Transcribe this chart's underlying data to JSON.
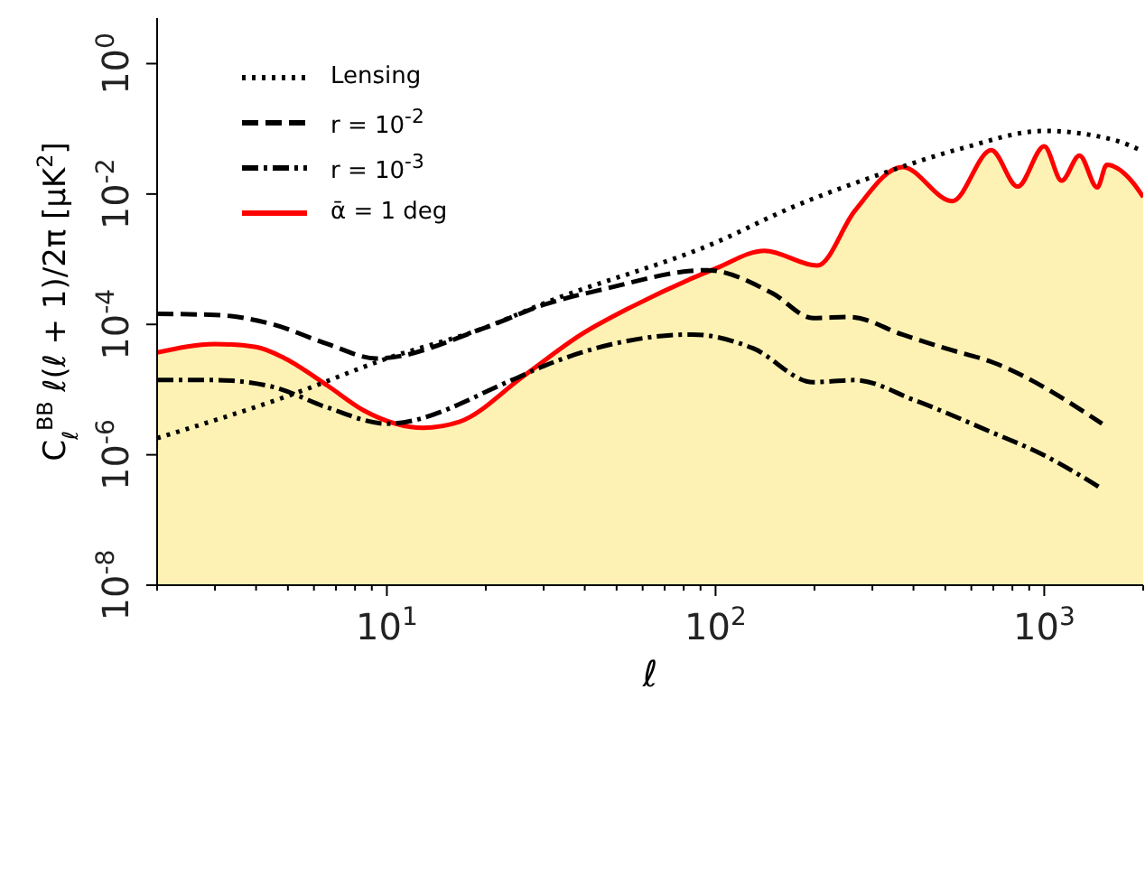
{
  "chart_data": {
    "type": "line",
    "xlabel": "ℓ",
    "ylabel": "C$_{ℓ}$$^{BB}$ ℓ(ℓ + 1)/2π [μK$^{2}$]",
    "log": "xy",
    "xlim": [
      2,
      2000
    ],
    "ylim": [
      1e-08,
      5
    ],
    "xticks": [
      {
        "value": 2,
        "label": null
      },
      {
        "value": 3,
        "label": null
      },
      {
        "value": 4,
        "label": null
      },
      {
        "value": 5,
        "label": null
      },
      {
        "value": 6,
        "label": null
      },
      {
        "value": 7,
        "label": null
      },
      {
        "value": 8,
        "label": null
      },
      {
        "value": 9,
        "label": null
      },
      {
        "value": 10,
        "label": "10$^{1}$"
      },
      {
        "value": 20,
        "label": null
      },
      {
        "value": 30,
        "label": null
      },
      {
        "value": 40,
        "label": null
      },
      {
        "value": 50,
        "label": null
      },
      {
        "value": 60,
        "label": null
      },
      {
        "value": 70,
        "label": null
      },
      {
        "value": 80,
        "label": null
      },
      {
        "value": 90,
        "label": null
      },
      {
        "value": 100,
        "label": "10$^{2}$"
      },
      {
        "value": 200,
        "label": null
      },
      {
        "value": 300,
        "label": null
      },
      {
        "value": 400,
        "label": null
      },
      {
        "value": 500,
        "label": null
      },
      {
        "value": 600,
        "label": null
      },
      {
        "value": 700,
        "label": null
      },
      {
        "value": 800,
        "label": null
      },
      {
        "value": 900,
        "label": null
      },
      {
        "value": 1000,
        "label": "10$^{3}$"
      },
      {
        "value": 2000,
        "label": null
      }
    ],
    "yticks": [
      {
        "value": 1e-08,
        "label": "10$^{-8}$"
      },
      {
        "value": 1e-06,
        "label": "10$^{-6}$"
      },
      {
        "value": 0.0001,
        "label": "10$^{-4}$"
      },
      {
        "value": 0.01,
        "label": "10$^{-2}$"
      },
      {
        "value": 1,
        "label": "10$^{0}$"
      }
    ],
    "grid": false,
    "legend": "top left",
    "series": [
      {
        "name": "Lensing",
        "color": "#000000",
        "line_style": "dotted",
        "x": [
          2,
          5,
          10,
          20,
          30,
          100,
          174,
          316,
          560,
          1000,
          1620,
          2000
        ],
        "values": [
          1.8e-06,
          8e-06,
          3e-05,
          9e-05,
          0.00021,
          0.0018,
          0.0065,
          0.02,
          0.05,
          0.093,
          0.068,
          0.045
        ]
      },
      {
        "name": "r = 10$^{-2}$",
        "color": "#000000",
        "line_style": "dashed",
        "x": [
          2,
          3,
          4.5,
          6.6,
          9.3,
          20,
          30,
          46,
          94,
          149,
          198,
          256,
          370,
          500,
          700,
          1500
        ],
        "values": [
          0.000145,
          0.00014,
          0.0001,
          5e-05,
          3e-05,
          9e-05,
          0.0002,
          0.00035,
          0.00068,
          0.0003,
          0.000125,
          0.00013,
          7e-05,
          4.3e-05,
          2.6e-05,
          3e-06
        ]
      },
      {
        "name": "r = 10$^{-3}$",
        "color": "#000000",
        "line_style": "dashdot",
        "x": [
          2,
          3,
          4.5,
          6.6,
          10,
          24,
          30,
          85,
          130,
          198,
          265,
          405,
          680,
          1000,
          1500
        ],
        "values": [
          1.4e-05,
          1.4e-05,
          1.1e-05,
          5.3e-06,
          3e-06,
          1.4e-05,
          2.3e-05,
          7e-05,
          4.3e-05,
          1.3e-05,
          1.4e-05,
          6.8e-06,
          2.3e-06,
          9.8e-07,
          3e-07
        ]
      },
      {
        "type": "area",
        "name": "ᾱ = 1 deg",
        "color": "#ff0000",
        "colors": [
          "#fdf2b4",
          "#fdf2b4",
          "#fdf2b4",
          "#fdf2b4",
          "#fdf2b4",
          "#fdf2b4",
          "#fdf2b4",
          "#fdf2b4",
          "#fdf2b4",
          "#fdf2b4",
          "#fdf2b4",
          "#fdf2b4",
          "#fdf2b4",
          "#fdf2b4",
          "#fdf2b4",
          "#fdf2b4",
          "#fdf2b4",
          "#fdf2b4",
          "#fdf2b4",
          "#fdf2b4",
          "#fdf2b4",
          "#fdf2b4",
          "#fdf2b4",
          "#fdf2b4",
          "#fdf2b4",
          "#fdf2b4"
        ],
        "line_style": "solid",
        "x": [
          2,
          3,
          4,
          4.9,
          6.6,
          8.5,
          12.9,
          16.6,
          26,
          39,
          56,
          100,
          141,
          204,
          265,
          370,
          525,
          690,
          830,
          1000,
          1130,
          1280,
          1450,
          1550,
          1860,
          2000
        ],
        "values": [
          3.7e-05,
          5e-05,
          4.5e-05,
          3e-05,
          1.15e-05,
          4.8e-06,
          2.6e-06,
          3.2e-06,
          1.6e-05,
          7e-05,
          0.00019,
          0.00072,
          0.00135,
          0.0008,
          0.0055,
          0.026,
          0.0078,
          0.047,
          0.013,
          0.054,
          0.016,
          0.039,
          0.0126,
          0.028,
          0.015,
          0.009
        ]
      }
    ]
  }
}
